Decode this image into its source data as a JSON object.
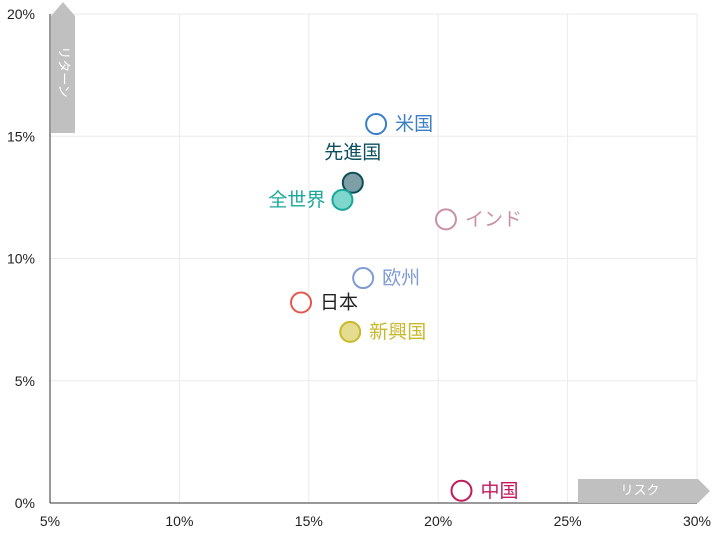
{
  "chart_data": {
    "type": "scatter",
    "xlim": [
      5,
      30
    ],
    "ylim": [
      0,
      20
    ],
    "x_ticks": [
      "5%",
      "10%",
      "15%",
      "20%",
      "25%",
      "30%"
    ],
    "y_ticks": [
      "0%",
      "5%",
      "10%",
      "15%",
      "20%"
    ],
    "x_tick_values": [
      5,
      10,
      15,
      20,
      25,
      30
    ],
    "y_tick_values": [
      0,
      5,
      10,
      15,
      20
    ],
    "xlabel": "リスク",
    "ylabel": "リターン",
    "grid": true,
    "points": [
      {
        "label": "米国",
        "x": 17.6,
        "y": 15.5,
        "color": "#3a7fc8",
        "filled": false,
        "label_pos": "right"
      },
      {
        "label": "先進国",
        "x": 16.7,
        "y": 13.1,
        "color": "#0b4f5c",
        "filled": true,
        "fill": "#7f9fa6",
        "label_pos": "top"
      },
      {
        "label": "全世界",
        "x": 16.3,
        "y": 12.4,
        "color": "#1aa79a",
        "filled": true,
        "fill": "#7fd6cc",
        "label_pos": "left"
      },
      {
        "label": "インド",
        "x": 20.3,
        "y": 11.6,
        "color": "#c98fa6",
        "filled": false,
        "label_pos": "right"
      },
      {
        "label": "欧州",
        "x": 17.1,
        "y": 9.2,
        "color": "#7f9bd4",
        "filled": false,
        "label_pos": "right"
      },
      {
        "label": "日本",
        "x": 14.7,
        "y": 8.2,
        "color": "#e5584d",
        "filled": false,
        "label_pos": "right",
        "text_color": "#222222"
      },
      {
        "label": "新興国",
        "x": 16.6,
        "y": 7.0,
        "color": "#c8b82c",
        "filled": true,
        "fill": "#e4dc8f",
        "label_pos": "right"
      },
      {
        "label": "中国",
        "x": 20.9,
        "y": 0.5,
        "color": "#c2185b",
        "filled": false,
        "label_pos": "right"
      }
    ]
  }
}
